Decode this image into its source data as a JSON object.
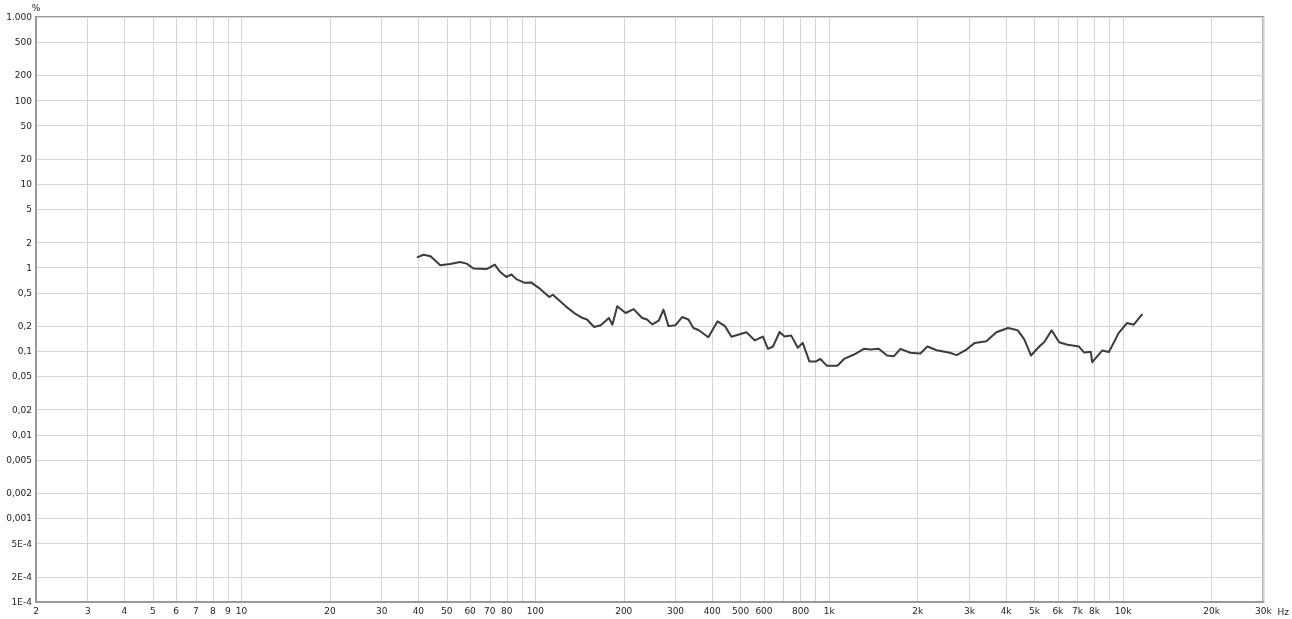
{
  "chart_data": {
    "type": "line",
    "ylabel": "%",
    "log": "xy",
    "grid": true,
    "marker": "none",
    "line_style": "solid",
    "xlim": [
      2,
      30000
    ],
    "ylim": [
      0.0001,
      1000
    ],
    "xticks": [
      2,
      3,
      4,
      5,
      6,
      7,
      8,
      9,
      10,
      20,
      30,
      40,
      50,
      60,
      70,
      80,
      {
        "value": 90,
        "label": null
      },
      100,
      200,
      300,
      400,
      500,
      600,
      {
        "value": 700,
        "label": null
      },
      800,
      {
        "value": 900,
        "label": null
      },
      {
        "value": 1000,
        "label": "1k"
      },
      {
        "value": 2000,
        "label": "2k"
      },
      {
        "value": 3000,
        "label": "3k"
      },
      {
        "value": 4000,
        "label": "4k"
      },
      {
        "value": 5000,
        "label": "5k"
      },
      {
        "value": 6000,
        "label": "6k"
      },
      {
        "value": 7000,
        "label": "7k"
      },
      {
        "value": 8000,
        "label": "8k"
      },
      {
        "value": 9000,
        "label": null
      },
      {
        "value": 10000,
        "label": "10k"
      },
      {
        "value": 20000,
        "label": "20k"
      },
      {
        "value": 30000,
        "label": "30k"
      }
    ],
    "xlabel": "Hz",
    "yticks": [
      {
        "value": 1000,
        "label": "1.000"
      },
      500,
      200,
      100,
      50,
      20,
      10,
      5,
      2,
      1,
      {
        "value": 0.5,
        "label": "0,5"
      },
      {
        "value": 0.2,
        "label": "0,2"
      },
      {
        "value": 0.1,
        "label": "0,1"
      },
      {
        "value": 0.05,
        "label": "0,05"
      },
      {
        "value": 0.02,
        "label": "0,02"
      },
      {
        "value": 0.01,
        "label": "0,01"
      },
      {
        "value": 0.005,
        "label": "0,005"
      },
      {
        "value": 0.002,
        "label": "0,002"
      },
      {
        "value": 0.001,
        "label": "0,001"
      },
      {
        "value": 0.0005,
        "label": "5E-4"
      },
      {
        "value": 0.0002,
        "label": "2E-4"
      },
      {
        "value": 0.0001,
        "label": "1E-4"
      }
    ],
    "series": [
      {
        "color": "#3c3c3c",
        "x": [
          39.8,
          41.7,
          44,
          47.5,
          51.3,
          55.5,
          58.4,
          61.6,
          68.3,
          72.8,
          75.7,
          79.7,
          83,
          86.2,
          92,
          96.8,
          103,
          111.6,
          114.7,
          127,
          137,
          145,
          150,
          158.5,
          167,
          178,
          183,
          190,
          203,
          216,
          231,
          240,
          250,
          263,
          273,
          284,
          300,
          316,
          332,
          345,
          359,
          388,
          417,
          442,
          465,
          490,
          523,
          558,
          595,
          619,
          644,
          678,
          705,
          743,
          782,
          813,
          856,
          902,
          933,
          983,
          1066,
          1124,
          1215,
          1312,
          1382,
          1475,
          1574,
          1659,
          1747,
          1888,
          2042,
          2159,
          2322,
          2576,
          2714,
          2933,
          3128,
          3427,
          3706,
          4059,
          4385,
          4617,
          4863,
          5188,
          5395,
          5715,
          6063,
          6470,
          7080,
          7365,
          7760,
          7855,
          8490,
          8950,
          9670,
          10320,
          10870,
          11590
        ],
        "values": [
          1.34,
          1.43,
          1.37,
          1.07,
          1.11,
          1.17,
          1.12,
          0.98,
          0.965,
          1.09,
          0.9,
          0.774,
          0.83,
          0.73,
          0.66,
          0.667,
          0.57,
          0.446,
          0.475,
          0.345,
          0.28,
          0.25,
          0.24,
          0.195,
          0.205,
          0.25,
          0.208,
          0.345,
          0.287,
          0.32,
          0.25,
          0.24,
          0.21,
          0.232,
          0.315,
          0.2,
          0.205,
          0.257,
          0.24,
          0.19,
          0.18,
          0.147,
          0.228,
          0.2,
          0.149,
          0.158,
          0.169,
          0.135,
          0.15,
          0.107,
          0.114,
          0.17,
          0.15,
          0.154,
          0.11,
          0.126,
          0.0757,
          0.0757,
          0.081,
          0.067,
          0.067,
          0.081,
          0.0915,
          0.107,
          0.105,
          0.107,
          0.089,
          0.087,
          0.107,
          0.096,
          0.094,
          0.114,
          0.103,
          0.096,
          0.09,
          0.105,
          0.126,
          0.132,
          0.169,
          0.19,
          0.178,
          0.138,
          0.089,
          0.114,
          0.129,
          0.178,
          0.128,
          0.12,
          0.114,
          0.097,
          0.099,
          0.074,
          0.102,
          0.098,
          0.166,
          0.218,
          0.208,
          0.274
        ]
      }
    ]
  }
}
